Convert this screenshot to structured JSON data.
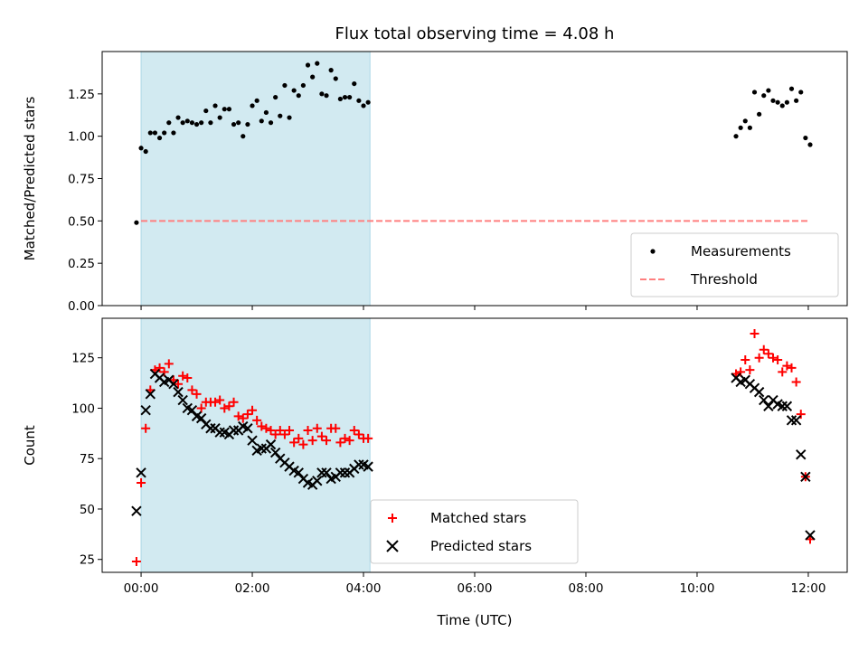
{
  "title": "Flux total observing time = 4.08 h",
  "xlabel": "Time (UTC)",
  "xticks": [
    "00:00",
    "02:00",
    "04:00",
    "06:00",
    "08:00",
    "10:00",
    "12:00"
  ],
  "colors": {
    "shade": "#add8e6",
    "measure": "#000000",
    "threshold": "#ff7f7f",
    "matched": "#ff0000",
    "predicted": "#000000"
  },
  "chart_data": [
    {
      "type": "scatter",
      "xlabel": "Time (UTC)",
      "ylabel": "Matched/Predicted stars",
      "xlim": [
        "-00:42",
        "12:42"
      ],
      "ylim": [
        0,
        1.5
      ],
      "yticks": [
        "0.00",
        "0.25",
        "0.50",
        "0.75",
        "1.00",
        "1.25"
      ],
      "shaded_interval": [
        "00:00",
        "04:07"
      ],
      "legend": {
        "placement": "lower right",
        "entries": [
          "Measurements",
          "Threshold"
        ]
      },
      "threshold": {
        "name": "Threshold",
        "y": 0.5,
        "x": [
          "00:00",
          "12:02"
        ]
      },
      "series": [
        {
          "name": "Measurements",
          "marker": "dot",
          "points": [
            [
              "-00:05",
              0.49
            ],
            [
              "00:00",
              0.93
            ],
            [
              "00:05",
              0.91
            ],
            [
              "00:10",
              1.02
            ],
            [
              "00:15",
              1.02
            ],
            [
              "00:20",
              0.99
            ],
            [
              "00:25",
              1.02
            ],
            [
              "00:30",
              1.08
            ],
            [
              "00:35",
              1.02
            ],
            [
              "00:40",
              1.11
            ],
            [
              "00:45",
              1.08
            ],
            [
              "00:50",
              1.09
            ],
            [
              "00:55",
              1.08
            ],
            [
              "01:00",
              1.07
            ],
            [
              "01:05",
              1.08
            ],
            [
              "01:10",
              1.15
            ],
            [
              "01:15",
              1.08
            ],
            [
              "01:20",
              1.18
            ],
            [
              "01:25",
              1.11
            ],
            [
              "01:30",
              1.16
            ],
            [
              "01:35",
              1.16
            ],
            [
              "01:40",
              1.07
            ],
            [
              "01:45",
              1.08
            ],
            [
              "01:50",
              1.0
            ],
            [
              "01:55",
              1.07
            ],
            [
              "02:00",
              1.18
            ],
            [
              "02:05",
              1.21
            ],
            [
              "02:10",
              1.09
            ],
            [
              "02:15",
              1.14
            ],
            [
              "02:20",
              1.08
            ],
            [
              "02:25",
              1.23
            ],
            [
              "02:30",
              1.12
            ],
            [
              "02:35",
              1.3
            ],
            [
              "02:40",
              1.11
            ],
            [
              "02:45",
              1.27
            ],
            [
              "02:50",
              1.24
            ],
            [
              "02:55",
              1.3
            ],
            [
              "03:00",
              1.42
            ],
            [
              "03:05",
              1.35
            ],
            [
              "03:10",
              1.43
            ],
            [
              "03:15",
              1.25
            ],
            [
              "03:20",
              1.24
            ],
            [
              "03:25",
              1.39
            ],
            [
              "03:30",
              1.34
            ],
            [
              "03:35",
              1.22
            ],
            [
              "03:40",
              1.23
            ],
            [
              "03:45",
              1.23
            ],
            [
              "03:50",
              1.31
            ],
            [
              "03:55",
              1.21
            ],
            [
              "04:00",
              1.18
            ],
            [
              "04:05",
              1.2
            ],
            [
              "10:42",
              1.0
            ],
            [
              "10:47",
              1.05
            ],
            [
              "10:52",
              1.09
            ],
            [
              "10:57",
              1.05
            ],
            [
              "11:02",
              1.26
            ],
            [
              "11:07",
              1.13
            ],
            [
              "11:12",
              1.24
            ],
            [
              "11:17",
              1.27
            ],
            [
              "11:22",
              1.21
            ],
            [
              "11:27",
              1.2
            ],
            [
              "11:32",
              1.18
            ],
            [
              "11:37",
              1.2
            ],
            [
              "11:42",
              1.28
            ],
            [
              "11:47",
              1.21
            ],
            [
              "11:52",
              1.26
            ],
            [
              "11:57",
              0.99
            ],
            [
              "12:02",
              0.95
            ]
          ]
        }
      ]
    },
    {
      "type": "scatter",
      "xlabel": "Time (UTC)",
      "ylabel": "Count",
      "xlim": [
        "-00:42",
        "12:42"
      ],
      "ylim": [
        18.6,
        144.6
      ],
      "yticks": [
        "25",
        "50",
        "75",
        "100",
        "125"
      ],
      "shaded_interval": [
        "00:00",
        "04:07"
      ],
      "legend": {
        "placement": "bottom center",
        "entries": [
          "Matched stars",
          "Predicted stars"
        ]
      },
      "series": [
        {
          "name": "Matched stars",
          "marker": "plus",
          "points": [
            [
              "-00:05",
              24
            ],
            [
              "00:00",
              63
            ],
            [
              "00:05",
              90
            ],
            [
              "00:10",
              109
            ],
            [
              "00:15",
              119
            ],
            [
              "00:20",
              120
            ],
            [
              "00:25",
              118
            ],
            [
              "00:30",
              122
            ],
            [
              "00:35",
              114
            ],
            [
              "00:40",
              112
            ],
            [
              "00:45",
              116
            ],
            [
              "00:50",
              115
            ],
            [
              "00:55",
              109
            ],
            [
              "01:00",
              107
            ],
            [
              "01:05",
              100
            ],
            [
              "01:10",
              103
            ],
            [
              "01:15",
              103
            ],
            [
              "01:20",
              103
            ],
            [
              "01:25",
              104
            ],
            [
              "01:30",
              100
            ],
            [
              "01:35",
              101
            ],
            [
              "01:40",
              103
            ],
            [
              "01:45",
              96
            ],
            [
              "01:50",
              95
            ],
            [
              "01:55",
              97
            ],
            [
              "02:00",
              99
            ],
            [
              "02:05",
              94
            ],
            [
              "02:10",
              91
            ],
            [
              "02:15",
              90
            ],
            [
              "02:20",
              89
            ],
            [
              "02:25",
              87
            ],
            [
              "02:30",
              89
            ],
            [
              "02:35",
              87
            ],
            [
              "02:40",
              89
            ],
            [
              "02:45",
              83
            ],
            [
              "02:50",
              85
            ],
            [
              "02:55",
              82
            ],
            [
              "03:00",
              89
            ],
            [
              "03:05",
              84
            ],
            [
              "03:10",
              90
            ],
            [
              "03:15",
              86
            ],
            [
              "03:20",
              84
            ],
            [
              "03:25",
              90
            ],
            [
              "03:30",
              90
            ],
            [
              "03:35",
              83
            ],
            [
              "03:40",
              85
            ],
            [
              "03:45",
              84
            ],
            [
              "03:50",
              89
            ],
            [
              "03:55",
              87
            ],
            [
              "04:00",
              85
            ],
            [
              "04:05",
              85
            ],
            [
              "10:42",
              117
            ],
            [
              "10:47",
              118
            ],
            [
              "10:52",
              124
            ],
            [
              "10:57",
              119
            ],
            [
              "11:02",
              137
            ],
            [
              "11:07",
              125
            ],
            [
              "11:12",
              129
            ],
            [
              "11:17",
              127
            ],
            [
              "11:22",
              125
            ],
            [
              "11:27",
              124
            ],
            [
              "11:32",
              118
            ],
            [
              "11:37",
              121
            ],
            [
              "11:42",
              120
            ],
            [
              "11:47",
              113
            ],
            [
              "11:52",
              97
            ],
            [
              "11:57",
              66
            ],
            [
              "12:02",
              35
            ]
          ]
        },
        {
          "name": "Predicted stars",
          "marker": "x",
          "points": [
            [
              "-00:05",
              49
            ],
            [
              "00:00",
              68
            ],
            [
              "00:05",
              99
            ],
            [
              "00:10",
              107
            ],
            [
              "00:15",
              117
            ],
            [
              "00:20",
              115
            ],
            [
              "00:25",
              113
            ],
            [
              "00:30",
              114
            ],
            [
              "00:35",
              112
            ],
            [
              "00:40",
              108
            ],
            [
              "00:45",
              104
            ],
            [
              "00:50",
              100
            ],
            [
              "00:55",
              99
            ],
            [
              "01:00",
              96
            ],
            [
              "01:05",
              95
            ],
            [
              "01:10",
              92
            ],
            [
              "01:15",
              90
            ],
            [
              "01:20",
              90
            ],
            [
              "01:25",
              88
            ],
            [
              "01:30",
              88
            ],
            [
              "01:35",
              87
            ],
            [
              "01:40",
              89
            ],
            [
              "01:45",
              89
            ],
            [
              "01:50",
              91
            ],
            [
              "01:55",
              90
            ],
            [
              "02:00",
              84
            ],
            [
              "02:05",
              79
            ],
            [
              "02:10",
              80
            ],
            [
              "02:15",
              80
            ],
            [
              "02:20",
              82
            ],
            [
              "02:25",
              78
            ],
            [
              "02:30",
              75
            ],
            [
              "02:35",
              73
            ],
            [
              "02:40",
              71
            ],
            [
              "02:45",
              69
            ],
            [
              "02:50",
              68
            ],
            [
              "02:55",
              65
            ],
            [
              "03:00",
              63
            ],
            [
              "03:05",
              62
            ],
            [
              "03:10",
              64
            ],
            [
              "03:15",
              68
            ],
            [
              "03:20",
              68
            ],
            [
              "03:25",
              65
            ],
            [
              "03:30",
              66
            ],
            [
              "03:35",
              68
            ],
            [
              "03:40",
              68
            ],
            [
              "03:45",
              68
            ],
            [
              "03:50",
              70
            ],
            [
              "03:55",
              72
            ],
            [
              "04:00",
              72
            ],
            [
              "04:05",
              71
            ],
            [
              "10:42",
              115
            ],
            [
              "10:47",
              113
            ],
            [
              "10:52",
              114
            ],
            [
              "10:57",
              112
            ],
            [
              "11:02",
              110
            ],
            [
              "11:07",
              108
            ],
            [
              "11:12",
              104
            ],
            [
              "11:17",
              101
            ],
            [
              "11:22",
              104
            ],
            [
              "11:27",
              102
            ],
            [
              "11:32",
              101
            ],
            [
              "11:37",
              101
            ],
            [
              "11:42",
              94
            ],
            [
              "11:47",
              94
            ],
            [
              "11:52",
              77
            ],
            [
              "11:57",
              66
            ],
            [
              "12:02",
              37
            ]
          ]
        }
      ]
    }
  ]
}
